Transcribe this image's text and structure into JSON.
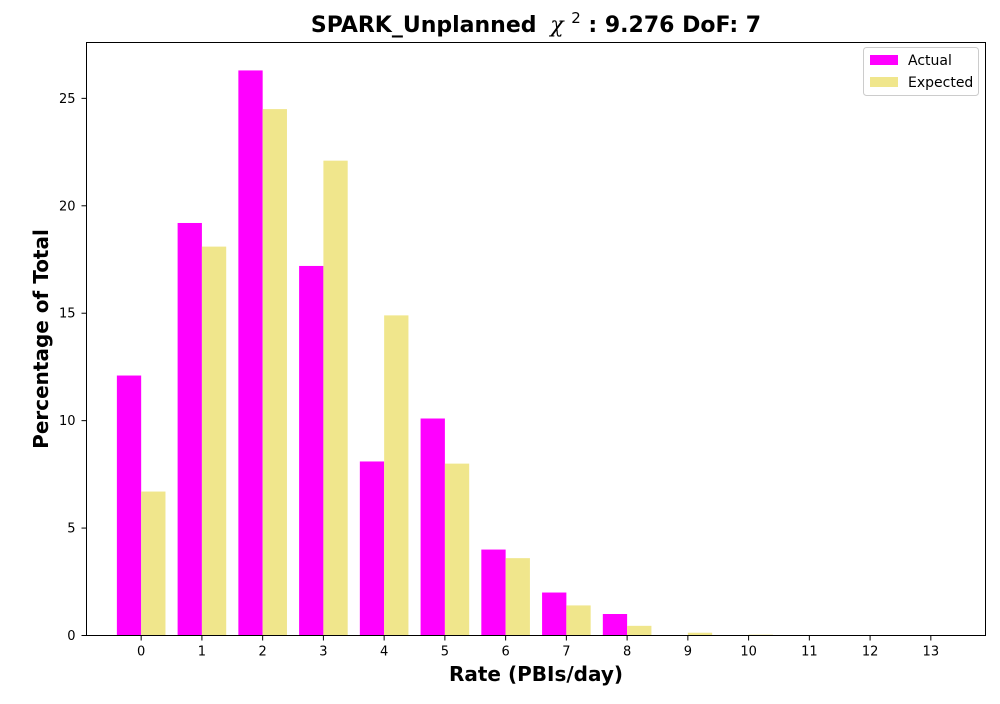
{
  "chart_data": {
    "type": "bar",
    "title": "SPARK_Unplanned",
    "title_chi_symbol": "χ",
    "title_chi_exponent": "2",
    "title_suffix": ": 9.276 DoF: 7",
    "xlabel": "Rate (PBIs/day)",
    "ylabel": "Percentage of Total",
    "categories": [
      "0",
      "1",
      "2",
      "3",
      "4",
      "5",
      "6",
      "7",
      "8",
      "9",
      "10",
      "11",
      "12",
      "13"
    ],
    "x_ticks": [
      "0",
      "1",
      "2",
      "3",
      "4",
      "5",
      "6",
      "7",
      "8",
      "9",
      "10",
      "11",
      "12",
      "13"
    ],
    "y_ticks": [
      "0",
      "5",
      "10",
      "15",
      "20",
      "25"
    ],
    "ylim": [
      0,
      27.6
    ],
    "xlim": [
      -0.9,
      13.9
    ],
    "grid": false,
    "legend_position": "top-right",
    "series": [
      {
        "name": "Actual",
        "color": "#ff00ff",
        "values": [
          12.1,
          19.2,
          26.3,
          17.2,
          8.1,
          10.1,
          4.0,
          2.0,
          1.0,
          0,
          0,
          0,
          0,
          0
        ]
      },
      {
        "name": "Expected",
        "color": "#f0e68c",
        "values": [
          6.7,
          18.1,
          24.5,
          22.1,
          14.9,
          8.0,
          3.6,
          1.4,
          0.45,
          0.13,
          0.04,
          0.01,
          0.0,
          0.0
        ]
      }
    ]
  }
}
